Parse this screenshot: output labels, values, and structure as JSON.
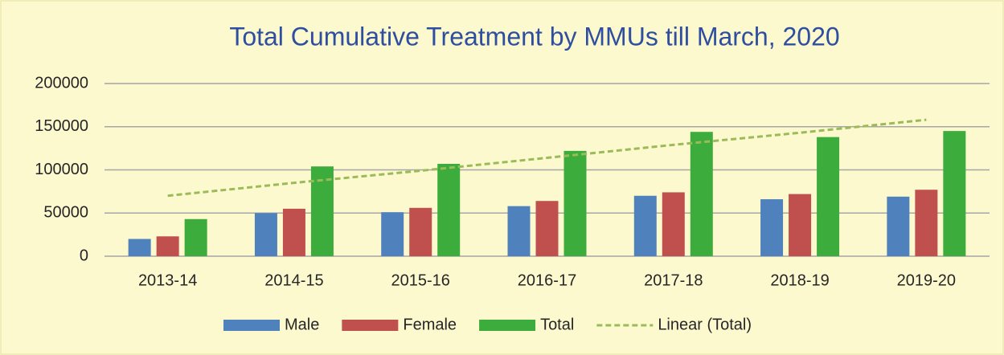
{
  "chart_data": {
    "type": "bar",
    "title": "Total Cumulative Treatment by MMUs till March, 2020",
    "categories": [
      "2013-14",
      "2014-15",
      "2015-16",
      "2016-17",
      "2017-18",
      "2018-19",
      "2019-20"
    ],
    "series": [
      {
        "name": "Male",
        "color": "#4f81bd",
        "values": [
          20000,
          50000,
          51000,
          58000,
          70000,
          66000,
          69000
        ]
      },
      {
        "name": "Female",
        "color": "#c0504d",
        "values": [
          23000,
          55000,
          56000,
          64000,
          74000,
          72000,
          77000
        ]
      },
      {
        "name": "Total",
        "color": "#3cad3c",
        "values": [
          43000,
          104000,
          107000,
          122000,
          144000,
          138000,
          145000
        ]
      },
      {
        "name": "Linear (Total)",
        "color": "#9bbb59",
        "type": "line",
        "dashed": true,
        "values": [
          70000,
          85000,
          99000,
          114000,
          129000,
          143000,
          158000
        ]
      }
    ],
    "ylim": [
      0,
      200000
    ],
    "yticks": [
      0,
      50000,
      100000,
      150000,
      200000
    ],
    "grid": true,
    "legend": "bottom"
  }
}
